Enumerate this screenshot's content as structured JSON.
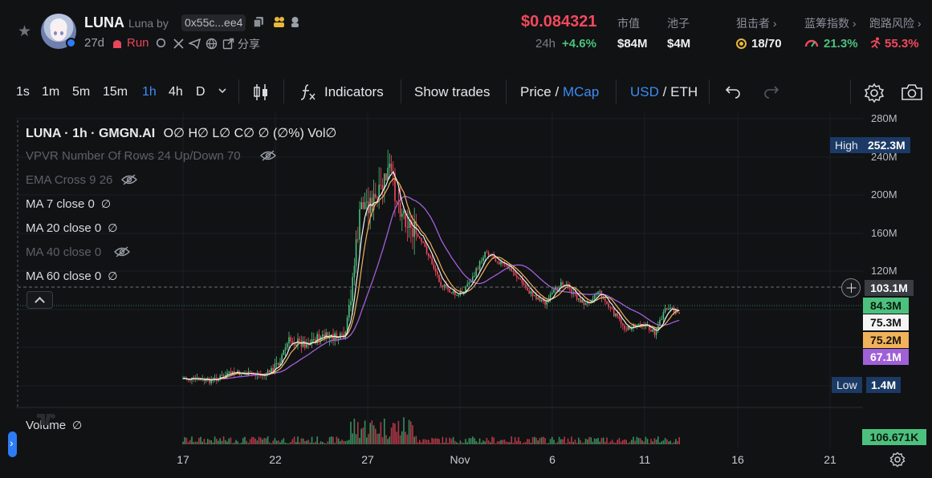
{
  "header": {
    "token_name": "LUNA",
    "by_label": "Luna by",
    "address": "0x55c...ee4",
    "age": "27d",
    "run_label": "Run",
    "share_label": "分享",
    "price": "$0.084321",
    "change_period": "24h",
    "change_value": "+4.6%",
    "stats": [
      {
        "label": "市值",
        "value": "$84M"
      },
      {
        "label": "池子",
        "value": "$4M"
      }
    ],
    "risk_stats": [
      {
        "label": "狙击者",
        "value": "18/70",
        "color": "#eef0f2"
      },
      {
        "label": "蓝筹指数",
        "value": "21.3%",
        "color": "#4cc17d"
      },
      {
        "label": "跑路风险",
        "value": "55.3%",
        "color": "#f2495c"
      }
    ],
    "icons": [
      "star-icon",
      "copy-icon",
      "badge-icon",
      "run-icon",
      "search-icon",
      "x-icon",
      "telegram-icon",
      "globe-icon",
      "share-icon"
    ]
  },
  "toolbar": {
    "timeframes": [
      "1s",
      "1m",
      "5m",
      "15m",
      "1h",
      "4h",
      "D"
    ],
    "active_timeframe": "1h",
    "indicators_label": "Indicators",
    "show_trades_label": "Show trades",
    "price_label": "Price",
    "slash": "/",
    "mcap_label": "MCap",
    "usd_label": "USD",
    "eth_label": "ETH"
  },
  "chart": {
    "legend_title": "LUNA · 1h · GMGN.AI",
    "ohlc": "O∅ H∅ L∅ C∅ ∅ (∅%) Vol∅",
    "indicators": [
      {
        "label": "VPVR Number Of Rows 24 Up/Down 70",
        "visible": false
      },
      {
        "label": "EMA Cross 9 26",
        "visible": false
      },
      {
        "label": "MA 7 close 0",
        "visible": true
      },
      {
        "label": "MA 20 close 0",
        "visible": true
      },
      {
        "label": "MA 40 close 0",
        "visible": false
      },
      {
        "label": "MA 60 close 0",
        "visible": true
      }
    ],
    "nil_symbol": "∅",
    "volume_label": "Volume",
    "y_ticks": [
      "280M",
      "240M",
      "200M",
      "160M",
      "120M"
    ],
    "x_ticks": [
      "17",
      "22",
      "27",
      "Nov",
      "6",
      "11",
      "16",
      "21"
    ],
    "price_tags": {
      "high_label": "High",
      "high_value": "252.3M",
      "low_label": "Low",
      "low_value": "1.4M",
      "crosshair": "103.1M",
      "current": "84.3M",
      "ma_a": "75.3M",
      "ma_b": "75.2M",
      "ma_c": "67.1M",
      "volume": "106.671K"
    },
    "colors": {
      "up": "#4cc17d",
      "down": "#f2495c",
      "ma_white": "#f2f2f2",
      "ma_yellow": "#f0b35a",
      "ma_purple": "#a060d8",
      "accent": "#3b8cf5"
    }
  }
}
